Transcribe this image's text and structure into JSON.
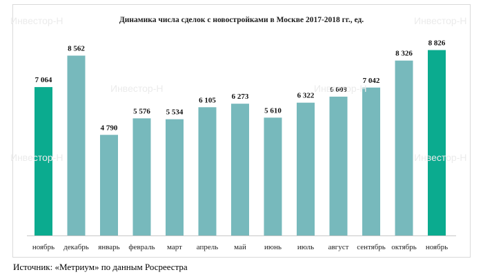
{
  "watermark": "Инвестор-Н",
  "source_text": "Источник: «Метриум» по данным Росреестра",
  "colors": {
    "highlight": "#0bab8f",
    "regular": "#77b9bc",
    "axis": "#c8c8c8",
    "label": "#111111"
  },
  "chart_data": {
    "type": "bar",
    "title": "Динамика числа сделок с новостройками в Москве 2017-2018 гг., ед.",
    "xlabel": "",
    "ylabel": "",
    "ylim": [
      0,
      9500
    ],
    "grid": false,
    "legend": "none",
    "categories": [
      "ноябрь",
      "декабрь",
      "январь",
      "февраль",
      "март",
      "апрель",
      "май",
      "июнь",
      "июль",
      "август",
      "сентябрь",
      "октябрь",
      "ноябрь"
    ],
    "values": [
      7064,
      8562,
      4790,
      5576,
      5534,
      6105,
      6273,
      5610,
      6322,
      6609,
      7042,
      8326,
      8826
    ],
    "value_labels": [
      "7 064",
      "8 562",
      "4 790",
      "5 576",
      "5 534",
      "6 105",
      "6 273",
      "5 610",
      "6 322",
      "6 609",
      "7 042",
      "8 326",
      "8 826"
    ],
    "highlighted": [
      true,
      false,
      false,
      false,
      false,
      false,
      false,
      false,
      false,
      false,
      false,
      false,
      true
    ]
  }
}
